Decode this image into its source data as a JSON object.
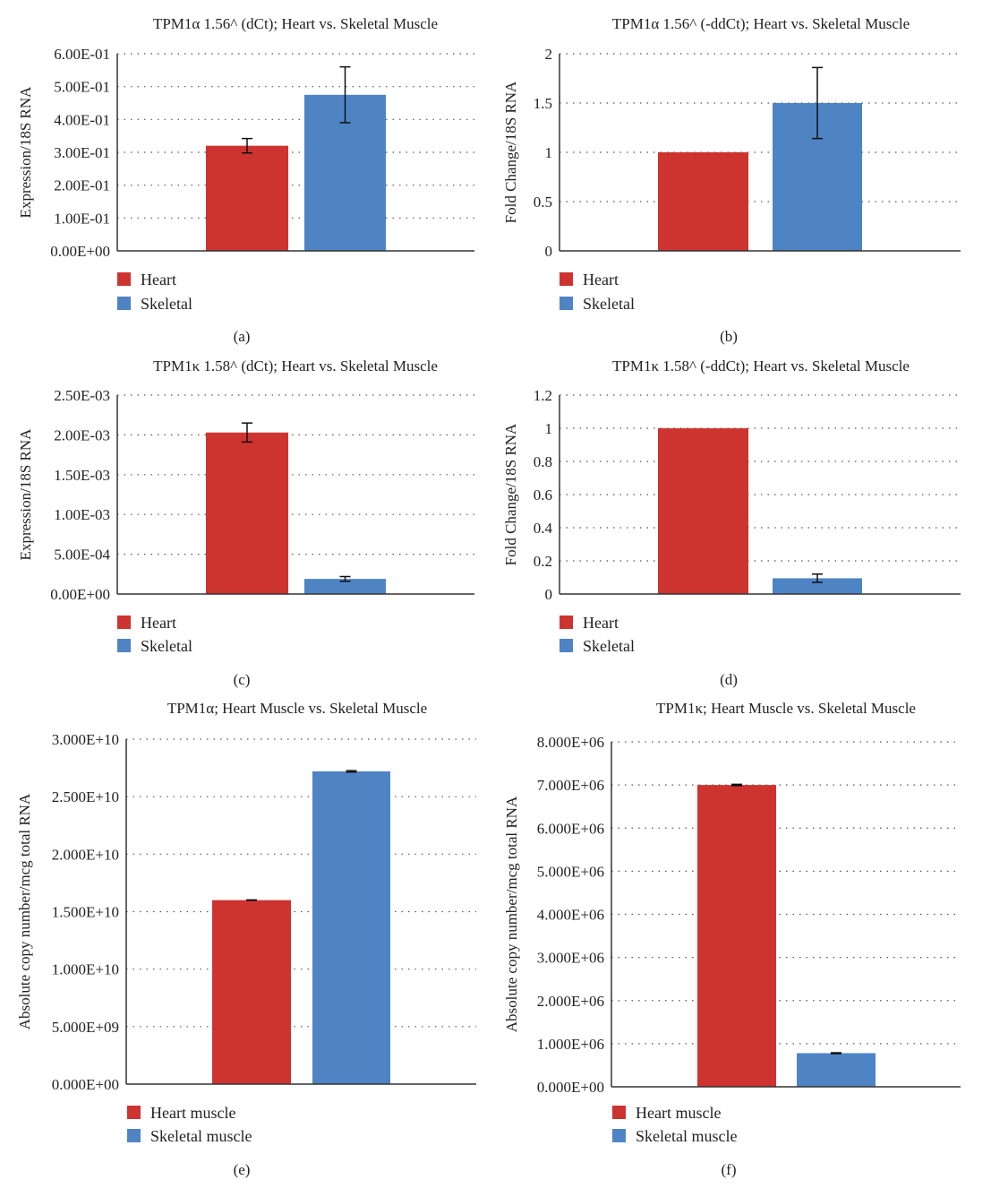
{
  "colors": {
    "heart": "#cd3430",
    "skeletal": "#4f84c4",
    "axis": "#333333",
    "grid": "#555555"
  },
  "chart_data": [
    {
      "panel": "(a)",
      "type": "bar",
      "title": "TPM1α 1.56^ (dCt); Heart vs. Skeletal Muscle",
      "ylabel": "Expression/18S RNA",
      "xlabel": "",
      "ylim": [
        0,
        0.6
      ],
      "yticks": [
        0,
        0.1,
        0.2,
        0.3,
        0.4,
        0.5,
        0.6
      ],
      "ytick_labels": [
        "0.00E+00",
        "1.00E-01",
        "2.00E-01",
        "3.00E-01",
        "4.00E-01",
        "5.00E-01",
        "6.00E-01"
      ],
      "grid": "dotted horizontal",
      "legend": "bottom-left",
      "series": [
        {
          "name": "Heart",
          "value": 0.32,
          "error": 0.022
        },
        {
          "name": "Skeletal",
          "value": 0.475,
          "error": 0.085
        }
      ]
    },
    {
      "panel": "(b)",
      "type": "bar",
      "title": "TPM1α 1.56^ (-ddCt); Heart vs. Skeletal Muscle",
      "ylabel": "Fold Change/18S RNA",
      "xlabel": "",
      "ylim": [
        0,
        2
      ],
      "yticks": [
        0,
        0.5,
        1,
        1.5,
        2
      ],
      "ytick_labels": [
        "0",
        "0.5",
        "1",
        "1.5",
        "2"
      ],
      "grid": "dotted horizontal",
      "legend": "bottom-left",
      "series": [
        {
          "name": "Heart",
          "value": 1.0,
          "error": 0
        },
        {
          "name": "Skeletal",
          "value": 1.5,
          "error": 0.36
        }
      ]
    },
    {
      "panel": "(c)",
      "type": "bar",
      "title": "TPM1κ 1.58^ (dCt); Heart vs. Skeletal Muscle",
      "ylabel": "Expression/18S RNA",
      "xlabel": "",
      "ylim": [
        0,
        0.0025
      ],
      "yticks": [
        0,
        0.0005,
        0.001,
        0.0015,
        0.002,
        0.0025
      ],
      "ytick_labels": [
        "0.00E+00",
        "5.00E-04",
        "1.00E-03",
        "1.50E-03",
        "2.00E-03",
        "2.50E-03"
      ],
      "grid": "dotted horizontal",
      "legend": "bottom-left",
      "series": [
        {
          "name": "Heart",
          "value": 0.00203,
          "error": 0.00012
        },
        {
          "name": "Skeletal",
          "value": 0.00019,
          "error": 3e-05
        }
      ]
    },
    {
      "panel": "(d)",
      "type": "bar",
      "title": "TPM1κ 1.58^ (-ddCt); Heart vs. Skeletal Muscle",
      "ylabel": "Fold Change/18S RNA",
      "xlabel": "",
      "ylim": [
        0,
        1.2
      ],
      "yticks": [
        0,
        0.2,
        0.4,
        0.6,
        0.8,
        1,
        1.2
      ],
      "ytick_labels": [
        "0",
        "0.2",
        "0.4",
        "0.6",
        "0.8",
        "1",
        "1.2"
      ],
      "grid": "dotted horizontal",
      "legend": "bottom-left",
      "series": [
        {
          "name": "Heart",
          "value": 1.0,
          "error": 0
        },
        {
          "name": "Skeletal",
          "value": 0.095,
          "error": 0.025
        }
      ]
    },
    {
      "panel": "(e)",
      "type": "bar",
      "title": "TPM1α; Heart Muscle vs. Skeletal Muscle",
      "ylabel": "Absolute copy number/mcg total RNA",
      "xlabel": "",
      "ylim": [
        0,
        30000000000
      ],
      "yticks": [
        0,
        5000000000,
        10000000000,
        15000000000,
        20000000000,
        25000000000,
        30000000000
      ],
      "ytick_labels": [
        "0.000E+00",
        "5.000E+09",
        "1.000E+10",
        "1.500E+10",
        "2.000E+10",
        "2.500E+10",
        "3.000E+10"
      ],
      "grid": "dotted horizontal",
      "legend": "bottom-left",
      "series": [
        {
          "name": "Heart muscle",
          "value": 16000000000,
          "error": 20000000
        },
        {
          "name": "Skeletal muscle",
          "value": 27200000000,
          "error": 60000000
        }
      ]
    },
    {
      "panel": "(f)",
      "type": "bar",
      "title": "TPM1κ; Heart Muscle vs. Skeletal Muscle",
      "ylabel": "Absolute copy number/mcg total RNA",
      "xlabel": "",
      "ylim": [
        0,
        8000000
      ],
      "yticks": [
        0,
        1000000,
        2000000,
        3000000,
        4000000,
        5000000,
        6000000,
        7000000,
        8000000
      ],
      "ytick_labels": [
        "0.000E+00",
        "1.000E+06",
        "2.000E+06",
        "3.000E+06",
        "4.000E+06",
        "5.000E+06",
        "6.000E+06",
        "7.000E+06",
        "8.000E+06"
      ],
      "grid": "dotted horizontal",
      "legend": "bottom-left",
      "series": [
        {
          "name": "Heart muscle",
          "value": 7000000,
          "error": 15000
        },
        {
          "name": "Skeletal muscle",
          "value": 780000,
          "error": 10000
        }
      ]
    }
  ]
}
